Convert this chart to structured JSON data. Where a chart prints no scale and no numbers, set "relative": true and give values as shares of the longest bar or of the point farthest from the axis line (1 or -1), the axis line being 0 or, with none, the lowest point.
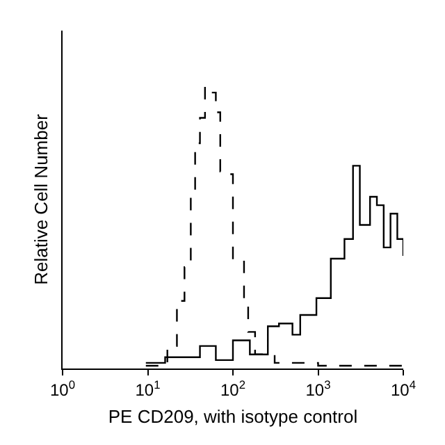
{
  "chart_data": {
    "type": "step",
    "xlabel": "PE CD209, with isotype control",
    "ylabel": "Relative Cell Number",
    "relative": true,
    "log": "x",
    "xlim": [
      1,
      10000
    ],
    "xticks": [
      {
        "value": 1,
        "label": "10$^{0}$"
      },
      {
        "value": 10,
        "label": "10$^{1}$"
      },
      {
        "value": 100,
        "label": "10$^{2}$"
      },
      {
        "value": 1000,
        "label": "10$^{3}$"
      },
      {
        "value": 10000,
        "label": "10$^{4}$"
      }
    ],
    "grid": false,
    "series": [
      {
        "color": "#000000",
        "line_style": "dashed",
        "x": [
          9.5,
          17,
          22,
          27,
          32,
          36,
          41,
          47,
          56,
          63,
          71,
          85,
          100,
          120,
          135,
          151,
          182,
          309,
          1000,
          3160,
          10000
        ],
        "values": [
          0.01,
          0.08,
          0.24,
          0.36,
          0.61,
          0.8,
          0.89,
          1,
          0.98,
          0.91,
          0.7,
          0.69,
          0.38,
          0.38,
          0.22,
          0.13,
          0.05,
          0.02,
          0.01,
          0.01,
          0.01
        ]
      },
      {
        "color": "#000000",
        "line_style": "solid",
        "x": [
          9.5,
          16,
          41,
          63,
          100,
          158,
          257,
          347,
          500,
          617,
          955,
          1410,
          2040,
          2570,
          3090,
          4070,
          4900,
          5890,
          7080,
          8510,
          10000
        ],
        "values": [
          0.02,
          0.04,
          0.08,
          0.03,
          0.1,
          0.05,
          0.15,
          0.16,
          0.12,
          0.19,
          0.25,
          0.39,
          0.46,
          0.72,
          0.51,
          0.61,
          0.58,
          0.43,
          0.55,
          0.46,
          0.4
        ]
      }
    ]
  }
}
